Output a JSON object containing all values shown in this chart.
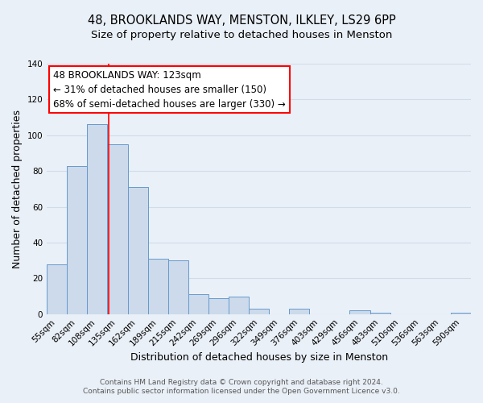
{
  "title": "48, BROOKLANDS WAY, MENSTON, ILKLEY, LS29 6PP",
  "subtitle": "Size of property relative to detached houses in Menston",
  "xlabel": "Distribution of detached houses by size in Menston",
  "ylabel": "Number of detached properties",
  "bar_color": "#ccdaeb",
  "bar_edge_color": "#6699cc",
  "categories": [
    "55sqm",
    "82sqm",
    "108sqm",
    "135sqm",
    "162sqm",
    "189sqm",
    "215sqm",
    "242sqm",
    "269sqm",
    "296sqm",
    "322sqm",
    "349sqm",
    "376sqm",
    "403sqm",
    "429sqm",
    "456sqm",
    "483sqm",
    "510sqm",
    "536sqm",
    "563sqm",
    "590sqm"
  ],
  "values": [
    28,
    83,
    106,
    95,
    71,
    31,
    30,
    11,
    9,
    10,
    3,
    0,
    3,
    0,
    0,
    2,
    1,
    0,
    0,
    0,
    1
  ],
  "ylim": [
    0,
    140
  ],
  "yticks": [
    0,
    20,
    40,
    60,
    80,
    100,
    120,
    140
  ],
  "red_line_x": 2.55,
  "annotation_box_text": "48 BROOKLANDS WAY: 123sqm\n← 31% of detached houses are smaller (150)\n68% of semi-detached houses are larger (330) →",
  "footer_line1": "Contains HM Land Registry data © Crown copyright and database right 2024.",
  "footer_line2": "Contains public sector information licensed under the Open Government Licence v3.0.",
  "background_color": "#eaf0f8",
  "plot_bg_color": "#eaf0f8",
  "grid_color": "#d0dce8",
  "title_fontsize": 10.5,
  "subtitle_fontsize": 9.5,
  "axis_label_fontsize": 9,
  "tick_fontsize": 7.5,
  "annotation_fontsize": 8.5,
  "footer_fontsize": 6.5
}
